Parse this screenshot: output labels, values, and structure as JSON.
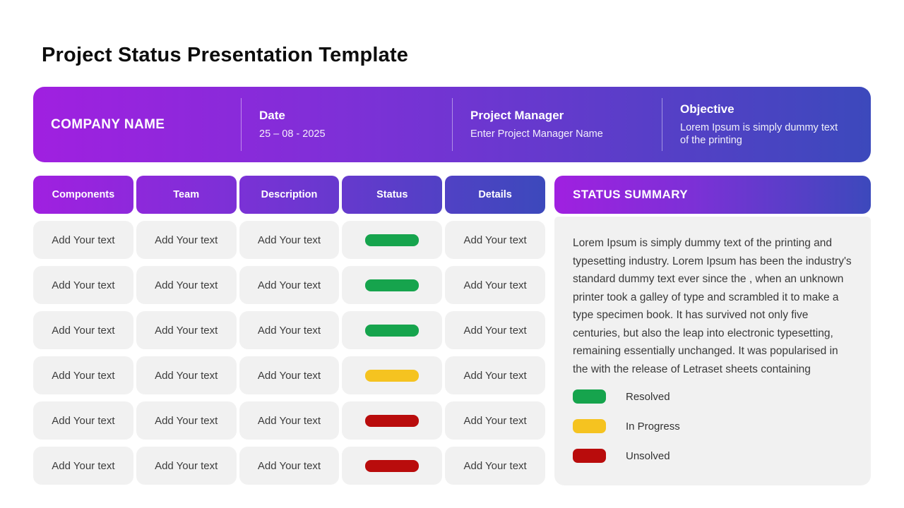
{
  "page_title": "Project Status Presentation Template",
  "info_bar": {
    "company_name": "COMPANY NAME",
    "date": {
      "label": "Date",
      "value": "25 – 08 - 2025"
    },
    "project_manager": {
      "label": "Project Manager",
      "value": "Enter Project Manager Name"
    },
    "objective": {
      "label": "Objective",
      "value": "Lorem Ipsum is simply dummy text of the printing"
    }
  },
  "table": {
    "columns": [
      "Components",
      "Team",
      "Description",
      "Status",
      "Details"
    ],
    "cell_placeholder": "Add Your text",
    "row_statuses": [
      "resolved",
      "resolved",
      "resolved",
      "in_progress",
      "unsolved",
      "unsolved"
    ]
  },
  "summary": {
    "title": "STATUS SUMMARY",
    "body": "Lorem Ipsum is simply dummy text of the printing and typesetting industry. Lorem Ipsum has been the industry's standard dummy text ever since the , when an unknown printer took a galley of type and scrambled it to make a type specimen book. It has survived not only five centuries, but also the leap into electronic typesetting, remaining essentially unchanged. It was popularised in the  with the release of Letraset sheets containing"
  },
  "legend": [
    {
      "label": "Resolved",
      "status": "resolved"
    },
    {
      "label": "In Progress",
      "status": "in_progress"
    },
    {
      "label": "Unsolved",
      "status": "unsolved"
    }
  ],
  "status_colors": {
    "resolved": "#16a44d",
    "in_progress": "#f5c320",
    "unsolved": "#b90c0c"
  },
  "theme": {
    "gradient_start": "#a020e0",
    "gradient_end": "#3c49bc",
    "cell_background": "#f1f1f1"
  }
}
